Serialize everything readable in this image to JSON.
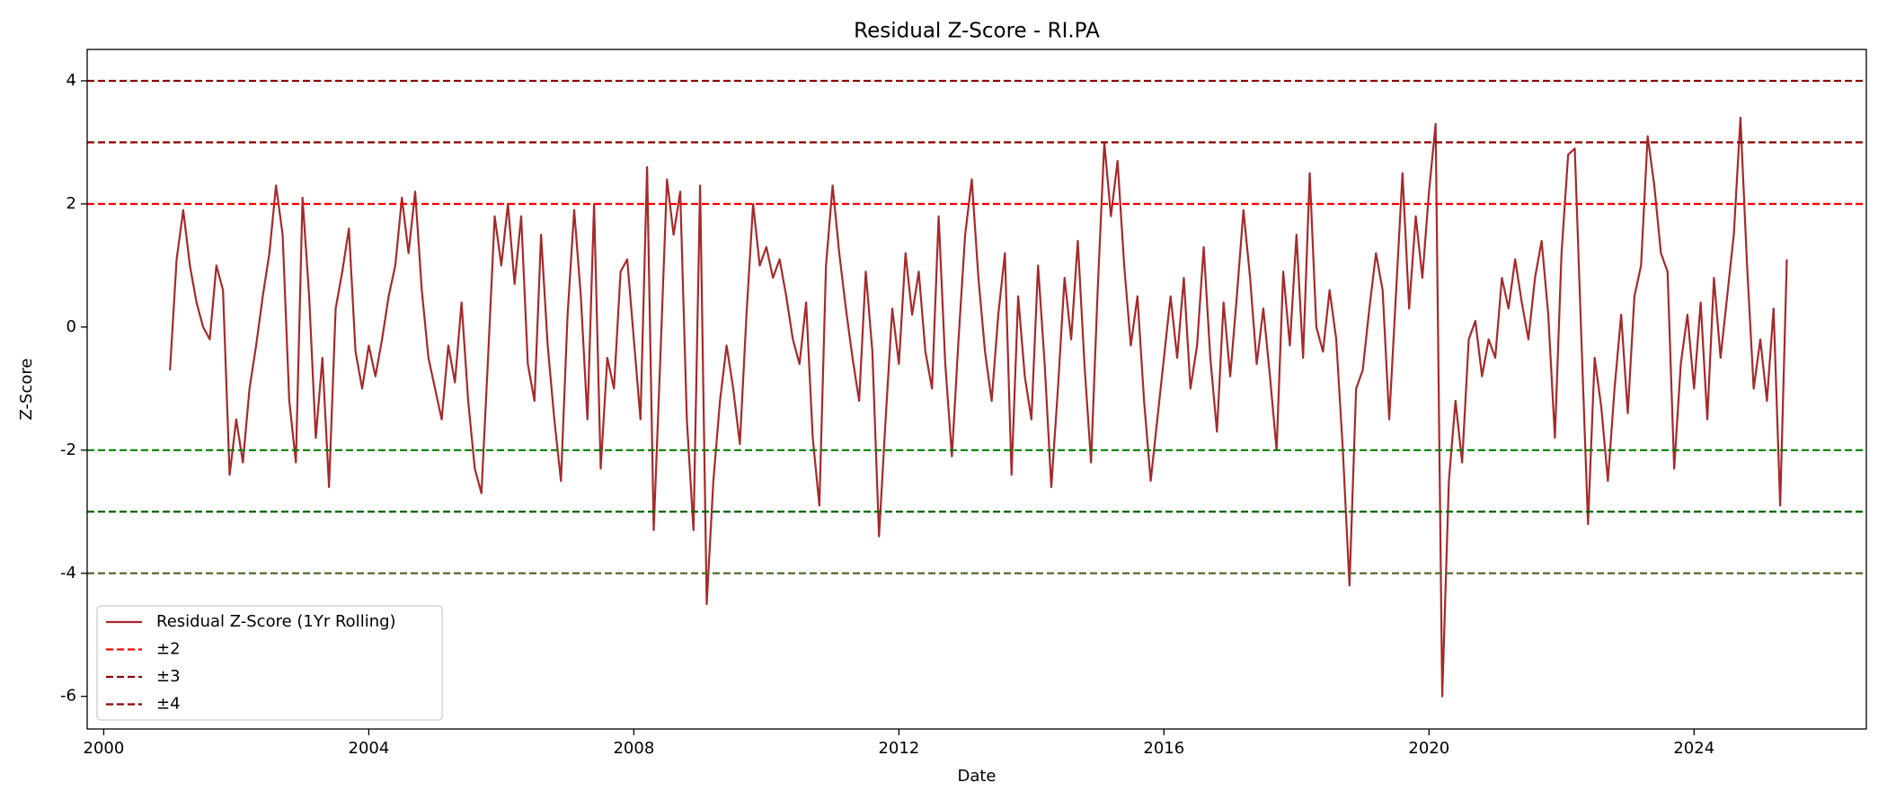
{
  "chart_data": {
    "type": "line",
    "title": "Residual Z-Score - RI.PA",
    "xlabel": "Date",
    "ylabel": "Z-Score",
    "xlim": [
      1999.75,
      2026.6
    ],
    "xticks": [
      2000,
      2004,
      2008,
      2012,
      2016,
      2020,
      2024
    ],
    "ylim": [
      -6.53,
      4.51
    ],
    "yticks": [
      -6,
      -4,
      -2,
      0,
      2,
      4
    ],
    "grid": false,
    "legend": "lower left",
    "x": [
      2001,
      2001.1,
      2001.2,
      2001.3,
      2001.4,
      2001.5,
      2001.6,
      2001.7,
      2001.8,
      2001.9,
      2002,
      2002.1,
      2002.2,
      2002.3,
      2002.4,
      2002.5,
      2002.6,
      2002.7,
      2002.8,
      2002.9,
      2003,
      2003.1,
      2003.2,
      2003.3,
      2003.4,
      2003.5,
      2003.6,
      2003.7,
      2003.8,
      2003.9,
      2004,
      2004.1,
      2004.2,
      2004.3,
      2004.4,
      2004.5,
      2004.6,
      2004.7,
      2004.8,
      2004.9,
      2005,
      2005.1,
      2005.2,
      2005.3,
      2005.4,
      2005.5,
      2005.6,
      2005.7,
      2005.8,
      2005.9,
      2006,
      2006.1,
      2006.2,
      2006.3,
      2006.4,
      2006.5,
      2006.6,
      2006.7,
      2006.8,
      2006.9,
      2007,
      2007.1,
      2007.2,
      2007.3,
      2007.4,
      2007.5,
      2007.6,
      2007.7,
      2007.8,
      2007.9,
      2008,
      2008.1,
      2008.2,
      2008.3,
      2008.4,
      2008.5,
      2008.6,
      2008.7,
      2008.8,
      2008.9,
      2009,
      2009.1,
      2009.2,
      2009.3,
      2009.4,
      2009.5,
      2009.6,
      2009.7,
      2009.8,
      2009.9,
      2010,
      2010.1,
      2010.2,
      2010.3,
      2010.4,
      2010.5,
      2010.6,
      2010.7,
      2010.8,
      2010.9,
      2011,
      2011.1,
      2011.2,
      2011.3,
      2011.4,
      2011.5,
      2011.6,
      2011.7,
      2011.8,
      2011.9,
      2012,
      2012.1,
      2012.2,
      2012.3,
      2012.4,
      2012.5,
      2012.6,
      2012.7,
      2012.8,
      2012.9,
      2013,
      2013.1,
      2013.2,
      2013.3,
      2013.4,
      2013.5,
      2013.6,
      2013.7,
      2013.8,
      2013.9,
      2014,
      2014.1,
      2014.2,
      2014.3,
      2014.4,
      2014.5,
      2014.6,
      2014.7,
      2014.8,
      2014.9,
      2015,
      2015.1,
      2015.2,
      2015.3,
      2015.4,
      2015.5,
      2015.6,
      2015.7,
      2015.8,
      2015.9,
      2016,
      2016.1,
      2016.2,
      2016.3,
      2016.4,
      2016.5,
      2016.6,
      2016.7,
      2016.8,
      2016.9,
      2017,
      2017.1,
      2017.2,
      2017.3,
      2017.4,
      2017.5,
      2017.6,
      2017.7,
      2017.8,
      2017.9,
      2018,
      2018.1,
      2018.2,
      2018.3,
      2018.4,
      2018.5,
      2018.6,
      2018.7,
      2018.8,
      2018.9,
      2019,
      2019.1,
      2019.2,
      2019.3,
      2019.4,
      2019.5,
      2019.6,
      2019.7,
      2019.8,
      2019.9,
      2020,
      2020.1,
      2020.2,
      2020.3,
      2020.4,
      2020.5,
      2020.6,
      2020.7,
      2020.8,
      2020.9,
      2021,
      2021.1,
      2021.2,
      2021.3,
      2021.4,
      2021.5,
      2021.6,
      2021.7,
      2021.8,
      2021.9,
      2022,
      2022.1,
      2022.2,
      2022.3,
      2022.4,
      2022.5,
      2022.6,
      2022.7,
      2022.8,
      2022.9,
      2023,
      2023.1,
      2023.2,
      2023.3,
      2023.4,
      2023.5,
      2023.6,
      2023.7,
      2023.8,
      2023.9,
      2024,
      2024.1,
      2024.2,
      2024.3,
      2024.4,
      2024.5,
      2024.6,
      2024.7,
      2024.8,
      2024.9,
      2025,
      2025.1,
      2025.2,
      2025.3,
      2025.4
    ],
    "series": [
      {
        "name": "Residual Z-Score (1Yr Rolling)",
        "color": "#a52a2a",
        "values": [
          -0.7,
          1.1,
          1.9,
          1.0,
          0.4,
          0.0,
          -0.2,
          1.0,
          0.6,
          -2.4,
          -1.5,
          -2.2,
          -1.0,
          -0.3,
          0.5,
          1.2,
          2.3,
          1.5,
          -1.2,
          -2.2,
          2.1,
          0.5,
          -1.8,
          -0.5,
          -2.6,
          0.3,
          0.9,
          1.6,
          -0.4,
          -1.0,
          -0.3,
          -0.8,
          -0.2,
          0.5,
          1.0,
          2.1,
          1.2,
          2.2,
          0.6,
          -0.5,
          -1.0,
          -1.5,
          -0.3,
          -0.9,
          0.4,
          -1.2,
          -2.3,
          -2.7,
          -0.5,
          1.8,
          1.0,
          2.0,
          0.7,
          1.8,
          -0.6,
          -1.2,
          1.5,
          -0.3,
          -1.5,
          -2.5,
          0.2,
          1.9,
          0.5,
          -1.5,
          2.0,
          -2.3,
          -0.5,
          -1.0,
          0.9,
          1.1,
          -0.2,
          -1.5,
          2.6,
          -3.3,
          -0.5,
          2.4,
          1.5,
          2.2,
          -1.5,
          -3.3,
          2.3,
          -4.5,
          -2.5,
          -1.2,
          -0.3,
          -1.0,
          -1.9,
          0.2,
          2.0,
          1.0,
          1.3,
          0.8,
          1.1,
          0.5,
          -0.2,
          -0.6,
          0.4,
          -1.8,
          -2.9,
          1.0,
          2.3,
          1.2,
          0.3,
          -0.5,
          -1.2,
          0.9,
          -0.4,
          -3.4,
          -1.5,
          0.3,
          -0.6,
          1.2,
          0.2,
          0.9,
          -0.4,
          -1.0,
          1.8,
          -0.6,
          -2.1,
          -0.2,
          1.5,
          2.4,
          0.8,
          -0.4,
          -1.2,
          0.2,
          1.2,
          -2.4,
          0.5,
          -0.8,
          -1.5,
          1.0,
          -0.6,
          -2.6,
          -1.0,
          0.8,
          -0.2,
          1.4,
          -0.6,
          -2.2,
          0.6,
          3.0,
          1.8,
          2.7,
          1.0,
          -0.3,
          0.5,
          -1.2,
          -2.5,
          -1.5,
          -0.5,
          0.5,
          -0.5,
          0.8,
          -1.0,
          -0.3,
          1.3,
          -0.5,
          -1.7,
          0.4,
          -0.8,
          0.5,
          1.9,
          0.8,
          -0.6,
          0.3,
          -0.8,
          -2.0,
          0.9,
          -0.3,
          1.5,
          -0.5,
          2.5,
          0.0,
          -0.4,
          0.6,
          -0.2,
          -2.0,
          -4.2,
          -1.0,
          -0.7,
          0.3,
          1.2,
          0.6,
          -1.5,
          0.5,
          2.5,
          0.3,
          1.8,
          0.8,
          2.2,
          3.3,
          -6.0,
          -2.5,
          -1.2,
          -2.2,
          -0.2,
          0.1,
          -0.8,
          -0.2,
          -0.5,
          0.8,
          0.3,
          1.1,
          0.4,
          -0.2,
          0.8,
          1.4,
          0.2,
          -1.8,
          1.2,
          2.8,
          2.9,
          -0.2,
          -3.2,
          -0.5,
          -1.3,
          -2.5,
          -1.0,
          0.2,
          -1.4,
          0.5,
          1.0,
          3.1,
          2.3,
          1.2,
          0.9,
          -2.3,
          -0.6,
          0.2,
          -1.0,
          0.4,
          -1.5,
          0.8,
          -0.5,
          0.5,
          1.5,
          3.4,
          1.0,
          -1.0,
          -0.2,
          -1.2,
          0.3,
          -2.9,
          1.1
        ]
      }
    ],
    "reference_lines": [
      {
        "name": "±2",
        "values": [
          2,
          -2
        ],
        "colors": [
          "#ff0000",
          "#008000"
        ]
      },
      {
        "name": "±3",
        "values": [
          3,
          -3
        ],
        "colors": [
          "#8b0000",
          "#006400"
        ]
      },
      {
        "name": "±4",
        "values": [
          4,
          -4
        ],
        "colors": [
          "#8b0000",
          "#556b2f"
        ]
      }
    ]
  }
}
